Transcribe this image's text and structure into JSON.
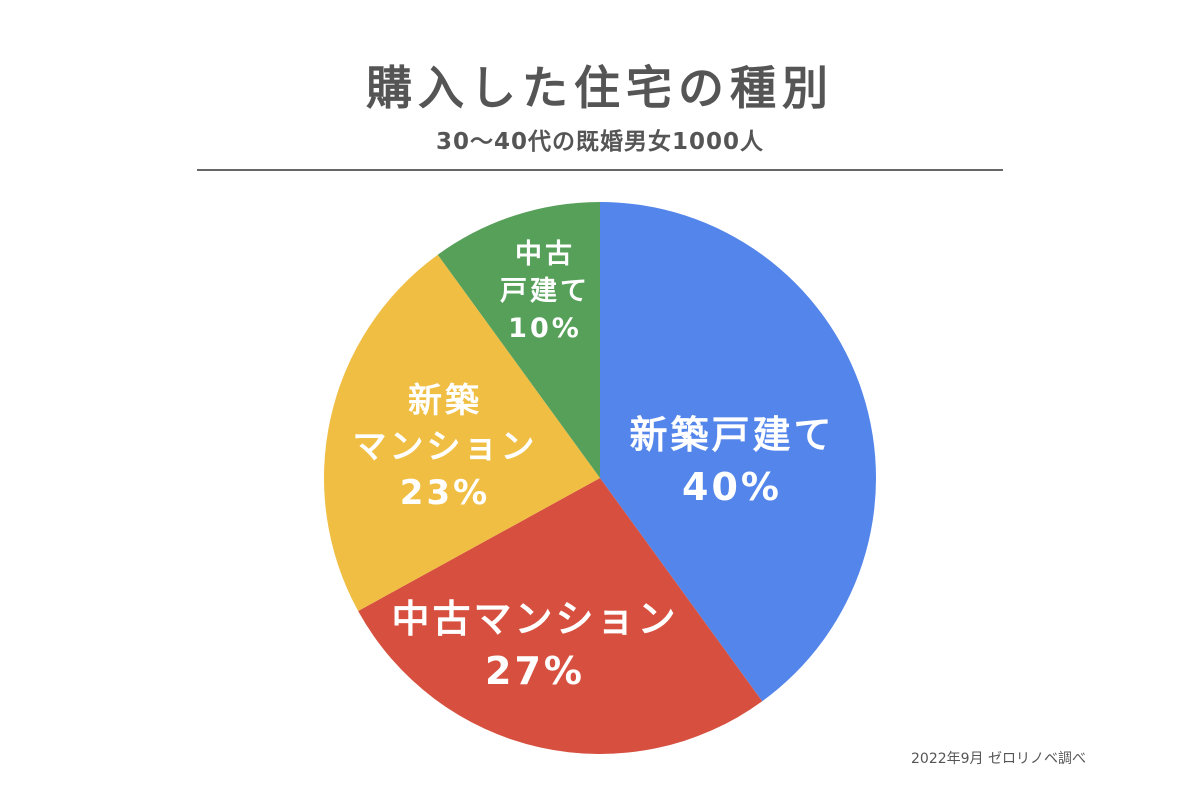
{
  "header": {
    "title": "購入した住宅の種別",
    "subtitle": "30〜40代の既婚男女1000人",
    "source": "2022年9月 ゼロリノベ調べ"
  },
  "chart_data": {
    "type": "pie",
    "title": "購入した住宅の種別",
    "subtitle": "30〜40代の既婚男女1000人",
    "start": "top",
    "direction": "clockwise",
    "slices": [
      {
        "label_lines": [
          "新築戸建て"
        ],
        "percent_label": "40%",
        "value": 40,
        "color": "#5385eb"
      },
      {
        "label_lines": [
          "中古マンション"
        ],
        "percent_label": "27%",
        "value": 27,
        "color": "#d7503f"
      },
      {
        "label_lines": [
          "新築",
          "マンション"
        ],
        "percent_label": "23%",
        "value": 23,
        "color": "#efbe43"
      },
      {
        "label_lines": [
          "中古",
          "戸建て"
        ],
        "percent_label": "10%",
        "value": 10,
        "color": "#57a05a"
      }
    ]
  }
}
